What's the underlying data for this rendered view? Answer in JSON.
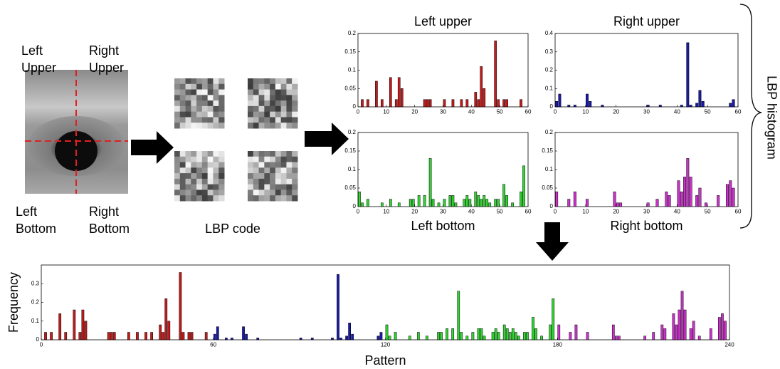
{
  "labels": [
    "Left Upper",
    "Right Upper",
    "Left Bottom",
    "Right Bottom",
    "LBP code",
    "LBP histogram"
  ],
  "chart_data": [
    {
      "type": "bar",
      "title": "Left upper",
      "color": "#c41a1a",
      "xlim": [
        0,
        60
      ],
      "ylim": [
        0,
        0.2
      ],
      "xticks": [
        0,
        10,
        20,
        30,
        40,
        50,
        60
      ],
      "yticks": [
        0,
        0.05,
        0.1,
        0.15,
        0.2
      ],
      "values": [
        0,
        0.02,
        0,
        0.02,
        0,
        0,
        0.07,
        0,
        0.02,
        0,
        0,
        0.08,
        0,
        0.02,
        0.08,
        0.05,
        0,
        0,
        0,
        0,
        0,
        0,
        0,
        0.02,
        0.02,
        0.02,
        0,
        0,
        0,
        0,
        0.02,
        0,
        0,
        0.02,
        0,
        0,
        0.02,
        0,
        0.02,
        0,
        0,
        0.04,
        0.02,
        0.11,
        0.05,
        0,
        0,
        0,
        0.18,
        0.02,
        0,
        0.02,
        0.02,
        0,
        0,
        0,
        0,
        0.02,
        0,
        0
      ]
    },
    {
      "type": "bar",
      "title": "Right upper",
      "color": "#1a1aa8",
      "xlim": [
        0,
        60
      ],
      "ylim": [
        0,
        0.4
      ],
      "xticks": [
        0,
        10,
        20,
        30,
        40,
        50,
        60
      ],
      "yticks": [
        0,
        0.1,
        0.2,
        0.3,
        0.4
      ],
      "values": [
        0.03,
        0.07,
        0,
        0,
        0.01,
        0,
        0.01,
        0,
        0,
        0,
        0.07,
        0.03,
        0,
        0,
        0,
        0.01,
        0,
        0,
        0,
        0,
        0,
        0,
        0,
        0,
        0,
        0,
        0,
        0,
        0,
        0,
        0.01,
        0,
        0,
        0,
        0.01,
        0,
        0,
        0,
        0,
        0,
        0,
        0.01,
        0,
        0.35,
        0.01,
        0,
        0.02,
        0.09,
        0.03,
        0,
        0,
        0,
        0,
        0,
        0,
        0,
        0,
        0.02,
        0.04,
        0
      ]
    },
    {
      "type": "bar",
      "title": "Left bottom",
      "color": "#33d633",
      "xlim": [
        0,
        60
      ],
      "ylim": [
        0,
        0.2
      ],
      "xticks": [
        0,
        10,
        20,
        30,
        40,
        50,
        60
      ],
      "yticks": [
        0,
        0.05,
        0.1,
        0.15,
        0.2
      ],
      "values": [
        0.04,
        0.01,
        0,
        0.02,
        0,
        0,
        0,
        0,
        0.01,
        0,
        0,
        0.02,
        0,
        0,
        0.01,
        0,
        0,
        0,
        0.02,
        0.02,
        0,
        0.03,
        0,
        0.03,
        0,
        0.13,
        0.02,
        0,
        0.01,
        0,
        0.02,
        0,
        0.03,
        0.03,
        0.01,
        0,
        0,
        0.02,
        0.03,
        0.02,
        0,
        0.04,
        0.03,
        0.02,
        0.03,
        0.02,
        0.01,
        0,
        0.02,
        0.02,
        0,
        0.06,
        0.03,
        0,
        0.01,
        0,
        0,
        0.04,
        0.11,
        0
      ]
    },
    {
      "type": "bar",
      "title": "Right bottom",
      "color": "#cc33cc",
      "xlim": [
        0,
        60
      ],
      "ylim": [
        0,
        0.2
      ],
      "xticks": [
        0,
        10,
        20,
        30,
        40,
        50,
        60
      ],
      "yticks": [
        0,
        0.05,
        0.1,
        0.15,
        0.2
      ],
      "values": [
        0.04,
        0,
        0,
        0,
        0.02,
        0,
        0.04,
        0,
        0,
        0,
        0.02,
        0,
        0,
        0,
        0,
        0,
        0,
        0,
        0,
        0.04,
        0.01,
        0.01,
        0,
        0,
        0,
        0,
        0,
        0,
        0,
        0,
        0.01,
        0,
        0,
        0.02,
        0,
        0,
        0.04,
        0.03,
        0,
        0,
        0.07,
        0.04,
        0.08,
        0.13,
        0.08,
        0,
        0.03,
        0.05,
        0,
        0.01,
        0,
        0,
        0,
        0.03,
        0,
        0,
        0.06,
        0.07,
        0.05,
        0
      ]
    },
    {
      "type": "bar",
      "xlabel": "Pattern",
      "ylabel": "Frequency",
      "xlim": [
        0,
        240
      ],
      "ylim": [
        0,
        0.4
      ],
      "xticks": [
        0,
        60,
        120,
        180,
        240
      ],
      "yticks": [
        0,
        0.1,
        0.2,
        0.3
      ],
      "series": [
        {
          "color": "#c41a1a",
          "values": [
            0,
            0.04,
            0,
            0.04,
            0,
            0,
            0.14,
            0,
            0.04,
            0,
            0,
            0.16,
            0,
            0.04,
            0.16,
            0.1,
            0,
            0,
            0,
            0,
            0,
            0,
            0,
            0.04,
            0.04,
            0.04,
            0,
            0,
            0,
            0,
            0.04,
            0,
            0,
            0.04,
            0,
            0,
            0.04,
            0,
            0.04,
            0,
            0,
            0.08,
            0.04,
            0.22,
            0.1,
            0,
            0,
            0,
            0.36,
            0.04,
            0,
            0.04,
            0.04,
            0,
            0,
            0,
            0,
            0.04,
            0,
            0
          ]
        },
        {
          "color": "#1a1aa8",
          "values": [
            0.03,
            0.07,
            0,
            0,
            0.01,
            0,
            0.01,
            0,
            0,
            0,
            0.07,
            0.03,
            0,
            0,
            0,
            0.01,
            0,
            0,
            0,
            0,
            0,
            0,
            0,
            0,
            0,
            0,
            0,
            0,
            0,
            0,
            0.01,
            0,
            0,
            0,
            0.01,
            0,
            0,
            0,
            0,
            0,
            0,
            0.01,
            0,
            0.35,
            0.01,
            0,
            0.02,
            0.09,
            0.03,
            0,
            0,
            0,
            0,
            0,
            0,
            0,
            0,
            0.02,
            0.04,
            0
          ]
        },
        {
          "color": "#33d633",
          "values": [
            0.08,
            0.02,
            0,
            0.04,
            0,
            0,
            0,
            0,
            0.02,
            0,
            0,
            0.04,
            0,
            0,
            0.02,
            0,
            0,
            0,
            0.04,
            0.04,
            0,
            0.06,
            0,
            0.06,
            0,
            0.26,
            0.04,
            0,
            0.02,
            0,
            0.04,
            0,
            0.06,
            0.06,
            0.02,
            0,
            0,
            0.04,
            0.06,
            0.04,
            0,
            0.08,
            0.06,
            0.04,
            0.06,
            0.04,
            0.02,
            0,
            0.04,
            0.04,
            0,
            0.12,
            0.06,
            0,
            0.02,
            0,
            0,
            0.08,
            0.22,
            0
          ]
        },
        {
          "color": "#cc33cc",
          "values": [
            0.08,
            0,
            0,
            0,
            0.04,
            0,
            0.08,
            0,
            0,
            0,
            0.04,
            0,
            0,
            0,
            0,
            0,
            0,
            0,
            0,
            0.08,
            0.02,
            0.02,
            0,
            0,
            0,
            0,
            0,
            0,
            0,
            0,
            0.02,
            0,
            0,
            0.04,
            0,
            0,
            0.08,
            0.06,
            0,
            0,
            0.14,
            0.08,
            0.16,
            0.26,
            0.16,
            0,
            0.06,
            0.1,
            0,
            0.02,
            0,
            0,
            0,
            0.06,
            0,
            0,
            0.12,
            0.14,
            0.1,
            0
          ]
        }
      ]
    }
  ]
}
